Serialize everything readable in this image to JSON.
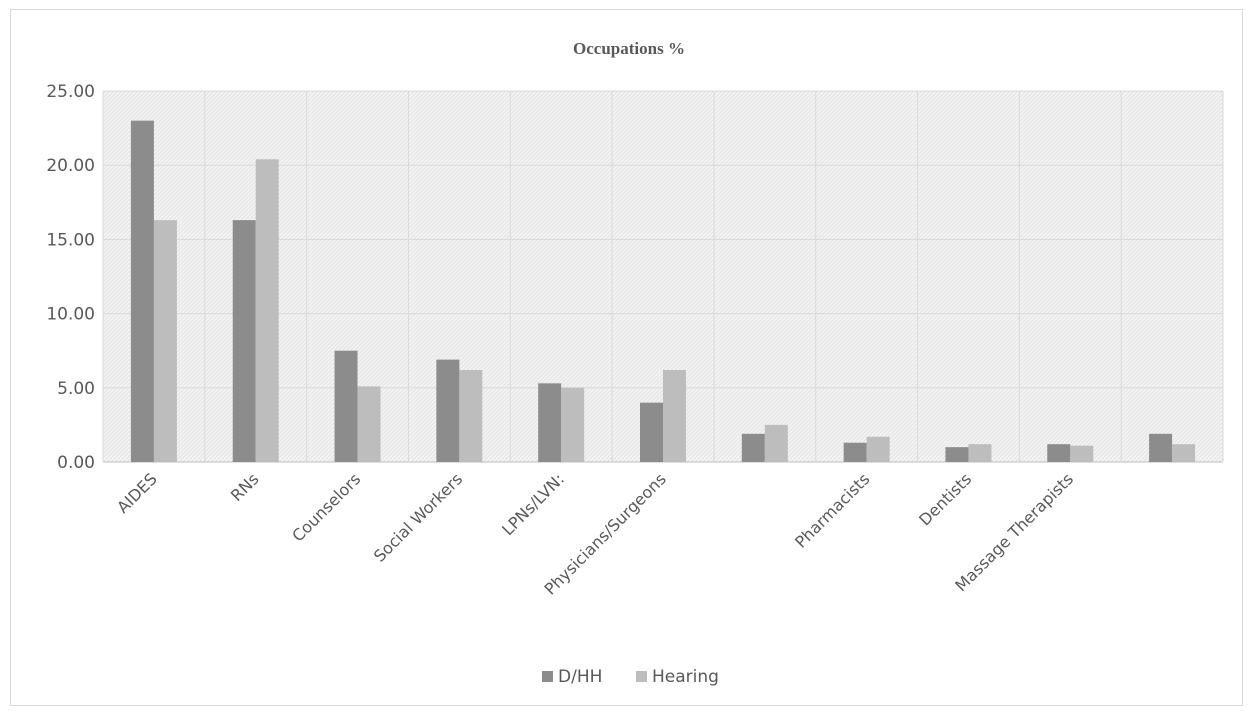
{
  "chart_data": {
    "type": "bar",
    "title": "Occupations %",
    "xlabel": "",
    "ylabel": "",
    "ylim": [
      0,
      25
    ],
    "yticks": [
      "0.00",
      "5.00",
      "10.00",
      "15.00",
      "20.00",
      "25.00"
    ],
    "categories": [
      "AIDES",
      "RNs",
      "Counselors",
      "Social Workers",
      "LPNs/LVN:",
      "Physicians/Surgeons",
      "",
      "Pharmacists",
      "Dentists",
      "Massage Therapists",
      ""
    ],
    "series": [
      {
        "name": "D/HH",
        "color": "#8c8c8c",
        "values": [
          23.0,
          16.3,
          7.5,
          6.9,
          5.3,
          4.0,
          1.9,
          1.3,
          1.0,
          1.2,
          1.9
        ]
      },
      {
        "name": "Hearing",
        "color": "#bdbdbd",
        "values": [
          16.3,
          20.4,
          5.1,
          6.2,
          5.0,
          6.2,
          2.5,
          1.7,
          1.2,
          1.1,
          1.2
        ]
      }
    ],
    "grid": true,
    "legend_position": "bottom"
  }
}
